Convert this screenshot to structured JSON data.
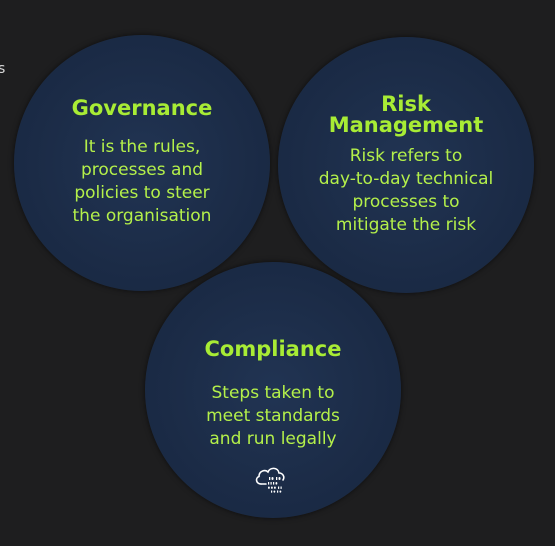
{
  "edge_mark": "s",
  "circles": {
    "governance": {
      "title": "Governance",
      "body": "It is the rules,\nprocesses and\npolicies to steer\nthe organisation"
    },
    "risk": {
      "title": "Risk\nManagement",
      "body": "Risk refers to\nday-to-day technical\nprocesses to\nmitigate the risk"
    },
    "compliance": {
      "title": "Compliance",
      "body": "Steps taken to\nmeet standards\nand run legally",
      "icon": "cloud-binary-icon"
    }
  },
  "colors": {
    "background": "#1e1e1f",
    "circle": "#1b2b46",
    "text": "#aef03a"
  }
}
